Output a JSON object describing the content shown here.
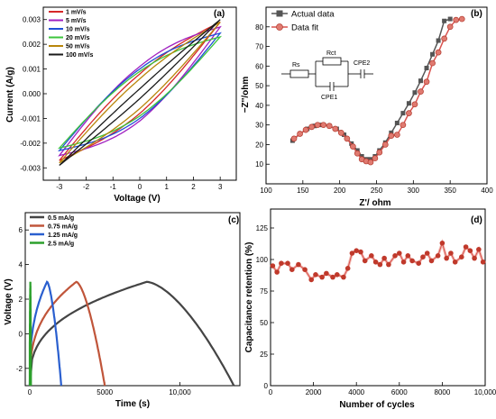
{
  "chart_data": [
    {
      "type": "line",
      "panel_label": "(a)",
      "xlabel": "Voltage (V)",
      "ylabel": "Current (A/g)",
      "xlim": [
        -3.6,
        3.6
      ],
      "ylim": [
        -0.0035,
        0.0035
      ],
      "xticks": [
        "-3",
        "-2",
        "-1",
        "0",
        "1",
        "2",
        "3"
      ],
      "yticks": [
        "-0.003",
        "-0.002",
        "-0.001",
        "0.000",
        "0.001",
        "0.002",
        "0.003"
      ],
      "legend_position": "top-left",
      "series": [
        {
          "name": "1 mV/s",
          "color": "#d62728",
          "x": [
            -3,
            3
          ],
          "ia": 0.0027,
          "ic": 0.0029,
          "h": 0.0008
        },
        {
          "name": "5 mV/s",
          "color": "#a020c0",
          "x": [
            -3,
            3
          ],
          "ia": 0.0025,
          "ic": 0.0027,
          "h": 0.0011
        },
        {
          "name": "10 mV/s",
          "color": "#1f4fd6",
          "x": [
            -3,
            3
          ],
          "ia": 0.0023,
          "ic": 0.00245,
          "h": 0.001
        },
        {
          "name": "20 mV/s",
          "color": "#3cc43c",
          "x": [
            -3,
            3
          ],
          "ia": 0.0022,
          "ic": 0.0023,
          "h": 0.0009
        },
        {
          "name": "50 mV/s",
          "color": "#b8860b",
          "x": [
            -3,
            3
          ],
          "ia": 0.0028,
          "ic": 0.0029,
          "h": 0.0006
        },
        {
          "name": "100 mV/s",
          "color": "#1a1a1a",
          "x": [
            -3,
            3
          ],
          "ia": 0.0029,
          "ic": 0.003,
          "h": 0.0002
        }
      ]
    },
    {
      "type": "scatter",
      "panel_label": "(b)",
      "xlabel": "Z'/ ohm",
      "ylabel": "−Z''/ohm",
      "xlim": [
        100,
        400
      ],
      "ylim": [
        0,
        90
      ],
      "xticks": [
        "100",
        "150",
        "200",
        "250",
        "300",
        "350",
        "400"
      ],
      "yticks": [
        "10",
        "20",
        "30",
        "40",
        "50",
        "60",
        "70",
        "80"
      ],
      "legend_position": "top-left",
      "circuit_labels": [
        "Rs",
        "Rct",
        "CPE1",
        "CPE2"
      ],
      "series": [
        {
          "name": "Actual data",
          "color": "#555555",
          "marker": "square",
          "x": [
            136,
            146,
            156,
            166,
            176,
            186,
            196,
            206,
            216,
            224,
            230,
            236,
            242,
            248,
            254,
            262,
            270,
            278,
            286,
            294,
            302,
            310,
            318,
            326,
            334,
            342,
            350
          ],
          "y": [
            22,
            25.5,
            28,
            29.5,
            30,
            29.5,
            28,
            25,
            20.5,
            17,
            14,
            12.5,
            12.5,
            14,
            17,
            21,
            26,
            31,
            36,
            41,
            46.5,
            52.5,
            59,
            66,
            73,
            83,
            84
          ]
        },
        {
          "name": "Data fit",
          "color": "#d9534f",
          "marker": "circle",
          "x": [
            138,
            146,
            154,
            162,
            170,
            178,
            186,
            194,
            202,
            210,
            218,
            224,
            230,
            236,
            242,
            248,
            254,
            262,
            270,
            278,
            286,
            294,
            302,
            310,
            318,
            326,
            334,
            342,
            350,
            358,
            366
          ],
          "y": [
            23,
            25.5,
            27.5,
            29,
            30,
            30,
            29.5,
            28,
            26,
            23,
            19,
            15.5,
            12.5,
            11.5,
            11,
            13,
            16,
            20,
            24.5,
            25,
            30,
            36,
            40.5,
            47,
            52,
            61.5,
            67,
            74,
            80,
            83.5,
            84
          ]
        }
      ]
    },
    {
      "type": "line",
      "panel_label": "(c)",
      "xlabel": "Time (s)",
      "ylabel": "Voltage (V)",
      "xlim": [
        -300,
        14000
      ],
      "ylim": [
        -3,
        7
      ],
      "xticks": [
        "0",
        "5000",
        "10,000"
      ],
      "yticks": [
        "-2",
        "0",
        "2",
        "4",
        "6"
      ],
      "legend_position": "top-left",
      "series": [
        {
          "name": "0.5   mA/g",
          "color": "#444444",
          "t_charge": 7800,
          "t_end": 13600
        },
        {
          "name": "0.75  mA/g",
          "color": "#c0553a",
          "t_charge": 3100,
          "t_end": 5000
        },
        {
          "name": "1.25  mA/g",
          "color": "#2a5fcf",
          "t_charge": 1150,
          "t_end": 2100
        },
        {
          "name": "2.5   mA/g",
          "color": "#2ca02c",
          "t_charge": 40,
          "t_end": 80
        }
      ]
    },
    {
      "type": "scatter",
      "panel_label": "(d)",
      "xlabel": "Number of cycles",
      "ylabel": "Capacitance retention (%)",
      "xlim": [
        0,
        10000
      ],
      "ylim": [
        0,
        140
      ],
      "xticks": [
        "0",
        "2000",
        "4000",
        "6000",
        "8000",
        "10,000"
      ],
      "yticks": [
        "0",
        "25",
        "50",
        "75",
        "100",
        "125"
      ],
      "series": [
        {
          "name": "",
          "color": "#c0392b",
          "x": [
            100,
            300,
            500,
            800,
            1000,
            1300,
            1600,
            1900,
            2100,
            2400,
            2600,
            2900,
            3100,
            3400,
            3600,
            3800,
            4000,
            4200,
            4400,
            4700,
            4900,
            5100,
            5300,
            5500,
            5800,
            6000,
            6200,
            6400,
            6600,
            6900,
            7100,
            7300,
            7500,
            7800,
            8000,
            8200,
            8400,
            8600,
            8900,
            9100,
            9300,
            9500,
            9700,
            9900
          ],
          "y": [
            95,
            90,
            97,
            97,
            92,
            96,
            92,
            84,
            88,
            86,
            89,
            86,
            88,
            86,
            93,
            105,
            107,
            106,
            99,
            103,
            98,
            96,
            101,
            96,
            103,
            105,
            98,
            103,
            99,
            97,
            102,
            105,
            99,
            103,
            113,
            101,
            105,
            98,
            102,
            110,
            107,
            101,
            108,
            98
          ]
        }
      ]
    }
  ]
}
